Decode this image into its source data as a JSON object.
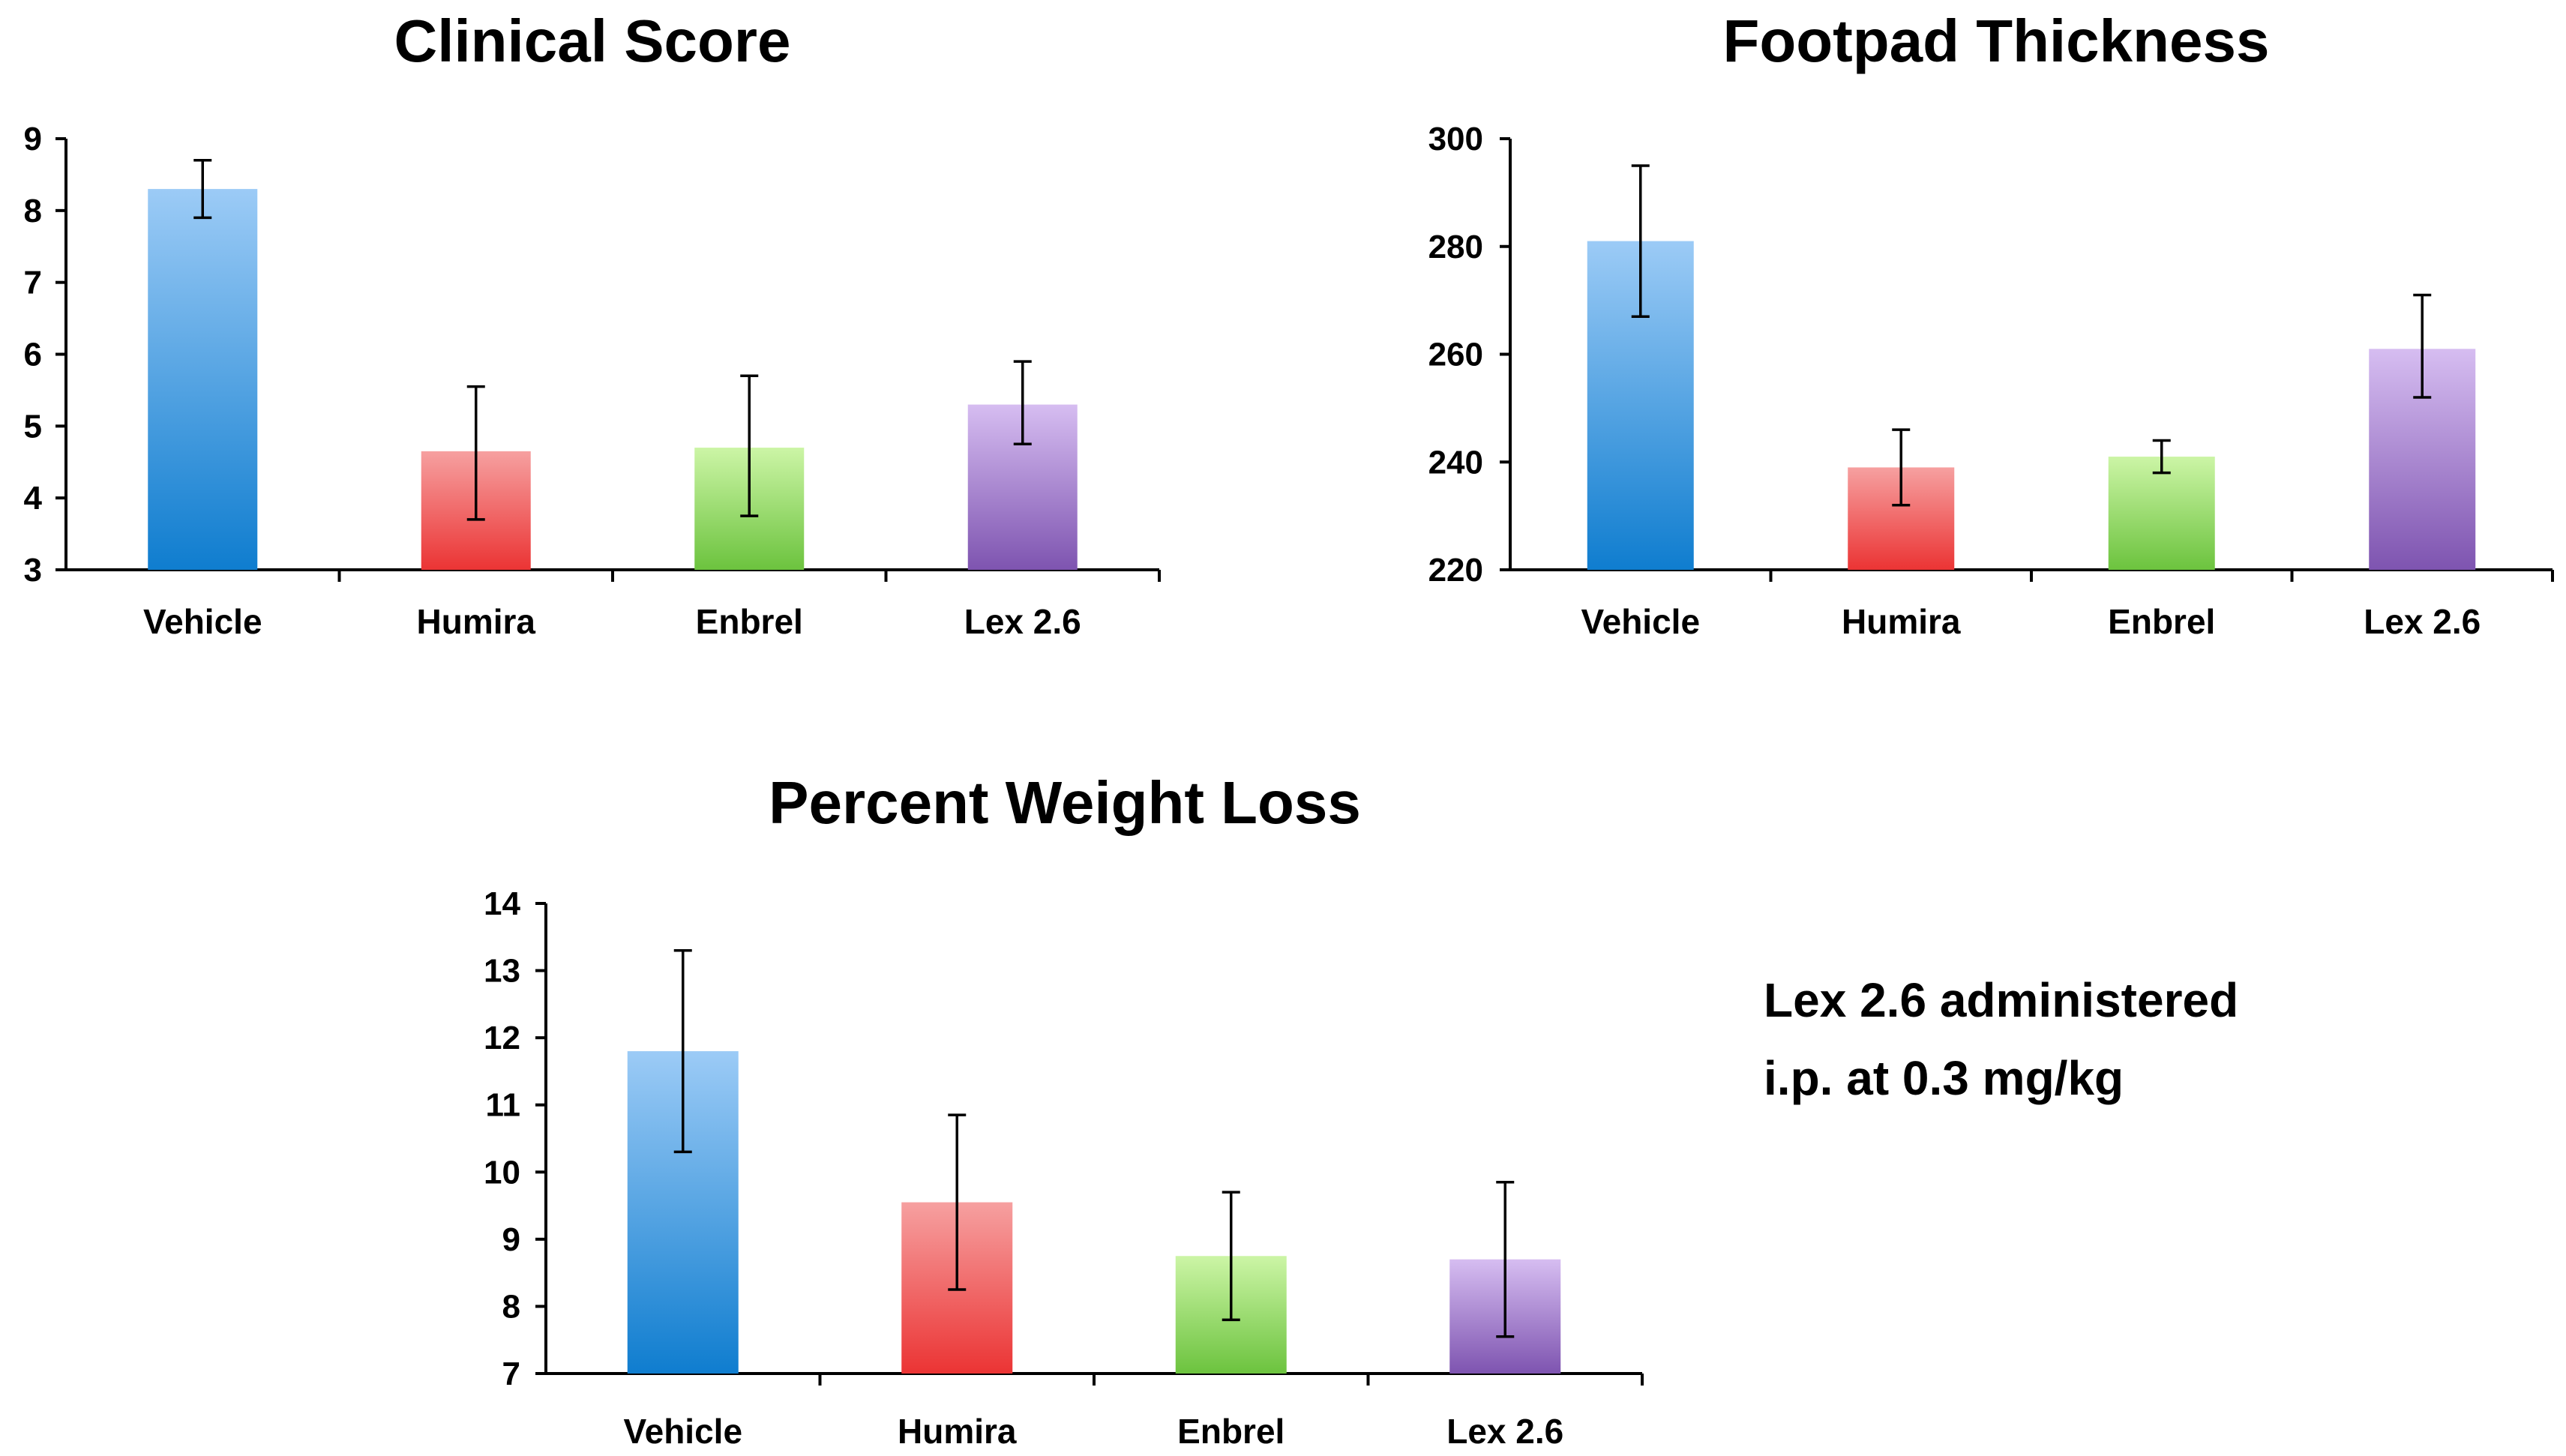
{
  "colors": {
    "vehicle": [
      "#9CCBF6",
      "#0F7DCF"
    ],
    "humira": [
      "#F6A0A0",
      "#EB3434"
    ],
    "enbrel": [
      "#CCF5A6",
      "#6CC33E"
    ],
    "lex": [
      "#D6BDF1",
      "#7E54B0"
    ]
  },
  "annotation": {
    "line1": "Lex 2.6 administered",
    "line2": "i.p. at 0.3 mg/kg"
  },
  "chart_data": [
    {
      "id": "clinical",
      "type": "bar",
      "title": "Clinical Score",
      "categories": [
        "Vehicle",
        "Humira",
        "Enbrel",
        "Lex 2.6"
      ],
      "values": [
        8.3,
        4.65,
        4.7,
        5.3
      ],
      "errors": [
        [
          7.9,
          8.7
        ],
        [
          3.7,
          5.55
        ],
        [
          3.75,
          5.7
        ],
        [
          4.75,
          5.9
        ]
      ],
      "ylim": [
        3,
        9
      ],
      "yticks": [
        3,
        4,
        5,
        6,
        7,
        8,
        9
      ],
      "xlabel": "",
      "ylabel": ""
    },
    {
      "id": "footpad",
      "type": "bar",
      "title": "Footpad Thickness",
      "categories": [
        "Vehicle",
        "Humira",
        "Enbrel",
        "Lex 2.6"
      ],
      "values": [
        281,
        239,
        241,
        261
      ],
      "errors": [
        [
          267,
          295
        ],
        [
          232,
          246
        ],
        [
          238,
          244
        ],
        [
          252,
          271
        ]
      ],
      "ylim": [
        220,
        300
      ],
      "yticks": [
        220,
        240,
        260,
        280,
        300
      ],
      "xlabel": "",
      "ylabel": ""
    },
    {
      "id": "weight",
      "type": "bar",
      "title": "Percent Weight Loss",
      "categories": [
        "Vehicle",
        "Humira",
        "Enbrel",
        "Lex 2.6"
      ],
      "values": [
        11.8,
        9.55,
        8.75,
        8.7
      ],
      "errors": [
        [
          10.3,
          13.3
        ],
        [
          8.25,
          10.85
        ],
        [
          7.8,
          9.7
        ],
        [
          7.55,
          9.85
        ]
      ],
      "ylim": [
        7,
        14
      ],
      "yticks": [
        7,
        8,
        9,
        10,
        11,
        12,
        13,
        14
      ],
      "xlabel": "",
      "ylabel": ""
    }
  ]
}
